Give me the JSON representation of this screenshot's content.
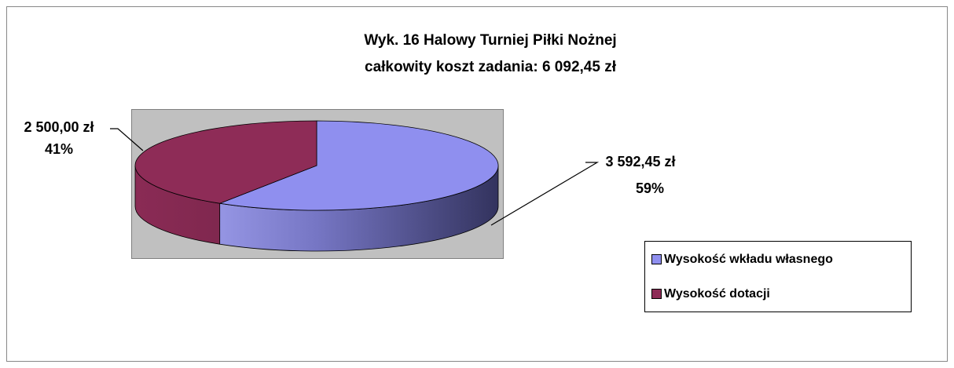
{
  "chart_data": {
    "type": "pie",
    "title": [
      "Wyk. 16 Halowy Turniej Piłki Nożnej",
      "całkowity koszt zadania: 6 092,45 zł"
    ],
    "categories": [
      "Wysokość wkładu własnego",
      "Wysokość dotacji"
    ],
    "values": [
      3592.45,
      2500.0
    ],
    "value_labels": [
      "3 592,45 zł",
      "2 500,00 zł"
    ],
    "percent_labels": [
      "59%",
      "41%"
    ],
    "colors": [
      "#8f8fef",
      "#8e2c57"
    ],
    "legend": "right"
  }
}
